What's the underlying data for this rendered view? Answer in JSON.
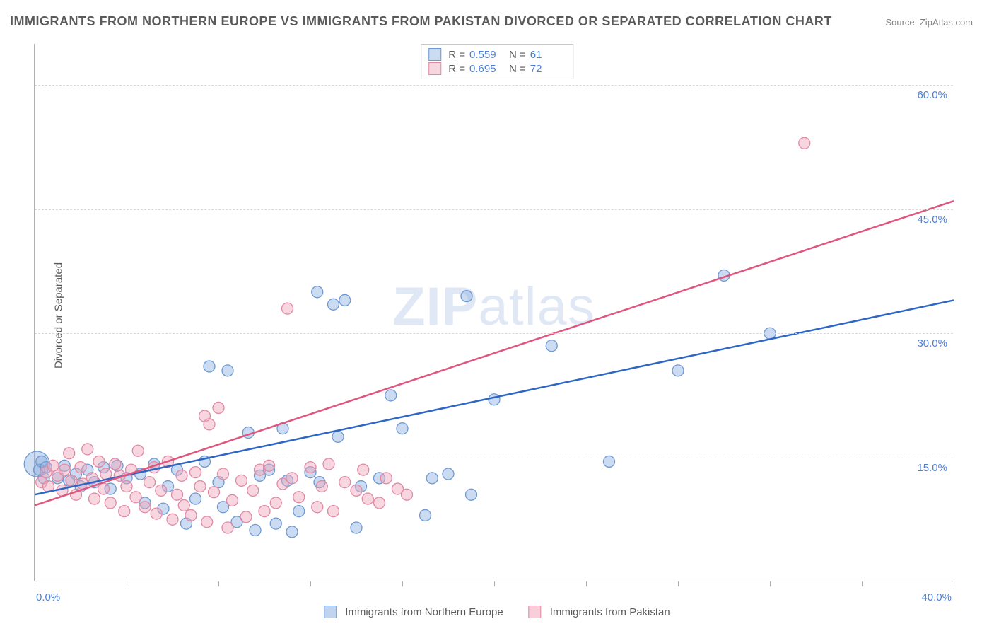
{
  "title": "IMMIGRANTS FROM NORTHERN EUROPE VS IMMIGRANTS FROM PAKISTAN DIVORCED OR SEPARATED CORRELATION CHART",
  "source": "Source: ZipAtlas.com",
  "y_axis_label": "Divorced or Separated",
  "watermark_bold": "ZIP",
  "watermark_rest": "atlas",
  "chart": {
    "type": "scatter",
    "xlim": [
      0,
      40
    ],
    "ylim": [
      0,
      65
    ],
    "x_ticks": [
      0,
      4,
      8,
      12,
      16,
      20,
      24,
      28,
      32,
      36,
      40
    ],
    "x_tick_labels": {
      "0": "0.0%",
      "40": "40.0%"
    },
    "y_gridlines": [
      15,
      30,
      45,
      60
    ],
    "y_tick_labels": {
      "15": "15.0%",
      "30": "30.0%",
      "45": "45.0%",
      "60": "60.0%"
    },
    "background_color": "#ffffff",
    "grid_color": "#d8d8d8",
    "axis_color": "#b0b0b0",
    "tick_label_color": "#4a7fd8",
    "point_radius": 8,
    "point_stroke_width": 1.3,
    "trend_line_width": 2.5,
    "series": [
      {
        "name": "Immigrants from Northern Europe",
        "fill_color": "rgba(140, 175, 225, 0.45)",
        "stroke_color": "#6f99d2",
        "trend_color": "#2d66c4",
        "R": "0.559",
        "N": "61",
        "trend": {
          "x1": 0,
          "y1": 10.5,
          "x2": 40,
          "y2": 34
        },
        "points": [
          [
            0.2,
            13.5
          ],
          [
            0.3,
            14.5
          ],
          [
            0.4,
            12.5
          ],
          [
            0.5,
            13.8
          ],
          [
            1.0,
            12.5
          ],
          [
            1.3,
            14.0
          ],
          [
            1.5,
            12.2
          ],
          [
            1.8,
            13.0
          ],
          [
            2.0,
            11.5
          ],
          [
            2.3,
            13.5
          ],
          [
            2.6,
            12.0
          ],
          [
            3.0,
            13.8
          ],
          [
            3.3,
            11.2
          ],
          [
            3.6,
            14.0
          ],
          [
            4.0,
            12.5
          ],
          [
            4.6,
            13.0
          ],
          [
            4.8,
            9.5
          ],
          [
            5.2,
            14.2
          ],
          [
            5.6,
            8.8
          ],
          [
            5.8,
            11.5
          ],
          [
            6.2,
            13.5
          ],
          [
            6.6,
            7.0
          ],
          [
            7.0,
            10.0
          ],
          [
            7.4,
            14.5
          ],
          [
            7.6,
            26.0
          ],
          [
            8.0,
            12.0
          ],
          [
            8.2,
            9.0
          ],
          [
            8.4,
            25.5
          ],
          [
            8.8,
            7.2
          ],
          [
            9.3,
            18.0
          ],
          [
            9.6,
            6.2
          ],
          [
            9.8,
            12.8
          ],
          [
            10.2,
            13.5
          ],
          [
            10.5,
            7.0
          ],
          [
            10.8,
            18.5
          ],
          [
            11.0,
            12.2
          ],
          [
            11.2,
            6.0
          ],
          [
            11.5,
            8.5
          ],
          [
            12.0,
            13.2
          ],
          [
            12.3,
            35.0
          ],
          [
            12.4,
            12.0
          ],
          [
            13.0,
            33.5
          ],
          [
            13.2,
            17.5
          ],
          [
            13.5,
            34.0
          ],
          [
            14.0,
            6.5
          ],
          [
            14.2,
            11.5
          ],
          [
            15.0,
            12.5
          ],
          [
            15.5,
            22.5
          ],
          [
            16.0,
            18.5
          ],
          [
            17.0,
            8.0
          ],
          [
            17.3,
            12.5
          ],
          [
            18.0,
            13.0
          ],
          [
            18.8,
            34.5
          ],
          [
            19.0,
            10.5
          ],
          [
            20.0,
            22.0
          ],
          [
            22.5,
            28.5
          ],
          [
            25.0,
            14.5
          ],
          [
            28.0,
            25.5
          ],
          [
            30.0,
            37.0
          ],
          [
            32.0,
            30.0
          ]
        ],
        "big_point": {
          "x": 0.1,
          "y": 14.2,
          "r": 18
        }
      },
      {
        "name": "Immigrants from Pakistan",
        "fill_color": "rgba(240, 165, 185, 0.45)",
        "stroke_color": "#e08aa5",
        "trend_color": "#e0557e",
        "R": "0.695",
        "N": "72",
        "trend": {
          "x1": 0,
          "y1": 9.2,
          "x2": 40,
          "y2": 46
        },
        "points": [
          [
            0.3,
            12.0
          ],
          [
            0.5,
            13.2
          ],
          [
            0.6,
            11.5
          ],
          [
            0.8,
            14.0
          ],
          [
            1.0,
            12.8
          ],
          [
            1.2,
            11.0
          ],
          [
            1.3,
            13.5
          ],
          [
            1.5,
            15.5
          ],
          [
            1.6,
            12.2
          ],
          [
            1.8,
            10.5
          ],
          [
            2.0,
            13.8
          ],
          [
            2.1,
            11.8
          ],
          [
            2.3,
            16.0
          ],
          [
            2.5,
            12.5
          ],
          [
            2.6,
            10.0
          ],
          [
            2.8,
            14.5
          ],
          [
            3.0,
            11.2
          ],
          [
            3.1,
            13.0
          ],
          [
            3.3,
            9.5
          ],
          [
            3.5,
            14.2
          ],
          [
            3.7,
            12.8
          ],
          [
            3.9,
            8.5
          ],
          [
            4.0,
            11.5
          ],
          [
            4.2,
            13.5
          ],
          [
            4.4,
            10.2
          ],
          [
            4.5,
            15.8
          ],
          [
            4.8,
            9.0
          ],
          [
            5.0,
            12.0
          ],
          [
            5.2,
            13.8
          ],
          [
            5.3,
            8.2
          ],
          [
            5.5,
            11.0
          ],
          [
            5.8,
            14.5
          ],
          [
            6.0,
            7.5
          ],
          [
            6.2,
            10.5
          ],
          [
            6.4,
            12.8
          ],
          [
            6.5,
            9.2
          ],
          [
            6.8,
            8.0
          ],
          [
            7.0,
            13.2
          ],
          [
            7.2,
            11.5
          ],
          [
            7.4,
            20.0
          ],
          [
            7.5,
            7.2
          ],
          [
            7.6,
            19.0
          ],
          [
            7.8,
            10.8
          ],
          [
            8.0,
            21.0
          ],
          [
            8.2,
            13.0
          ],
          [
            8.4,
            6.5
          ],
          [
            8.6,
            9.8
          ],
          [
            9.0,
            12.2
          ],
          [
            9.2,
            7.8
          ],
          [
            9.5,
            11.0
          ],
          [
            9.8,
            13.5
          ],
          [
            10.0,
            8.5
          ],
          [
            10.2,
            14.0
          ],
          [
            10.5,
            9.5
          ],
          [
            10.8,
            11.8
          ],
          [
            11.0,
            33.0
          ],
          [
            11.2,
            12.5
          ],
          [
            11.5,
            10.2
          ],
          [
            12.0,
            13.8
          ],
          [
            12.3,
            9.0
          ],
          [
            12.5,
            11.5
          ],
          [
            12.8,
            14.2
          ],
          [
            13.0,
            8.5
          ],
          [
            13.5,
            12.0
          ],
          [
            14.0,
            11.0
          ],
          [
            14.3,
            13.5
          ],
          [
            14.5,
            10.0
          ],
          [
            15.0,
            9.5
          ],
          [
            15.3,
            12.5
          ],
          [
            15.8,
            11.2
          ],
          [
            16.2,
            10.5
          ],
          [
            33.5,
            53.0
          ]
        ]
      }
    ]
  },
  "legend_top": {
    "border_color": "#c8c8c8",
    "r_label": "R =",
    "n_label": "N ="
  },
  "legend_bottom_items": [
    {
      "label": "Immigrants from Northern Europe",
      "fill": "rgba(140, 175, 225, 0.55)",
      "stroke": "#6f99d2"
    },
    {
      "label": "Immigrants from Pakistan",
      "fill": "rgba(240, 165, 185, 0.55)",
      "stroke": "#e08aa5"
    }
  ]
}
